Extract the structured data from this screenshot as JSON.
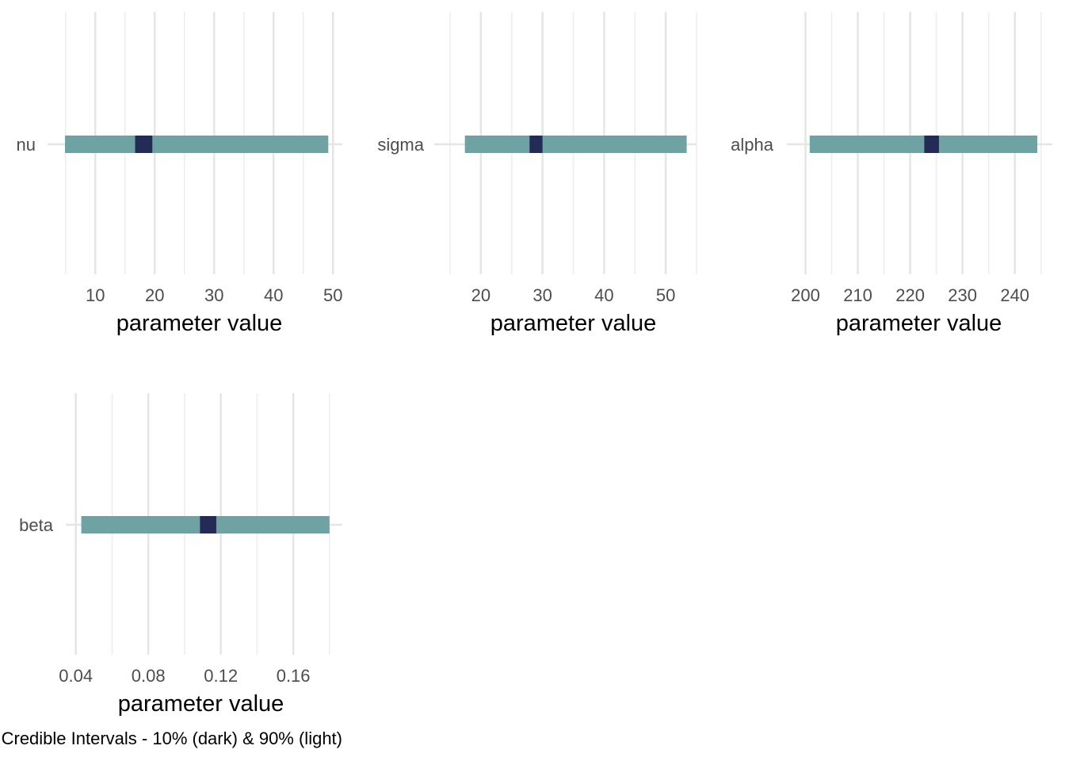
{
  "caption": "Credible Intervals - 10% (dark) & 90% (light)",
  "colors": {
    "outer": "#6fa3a3",
    "inner": "#232b56",
    "grid": "#e5e5e5"
  },
  "chart_data": [
    {
      "type": "interval",
      "parameter": "nu",
      "xlabel": "parameter value",
      "xlim": [
        4.5,
        50.5
      ],
      "ticks": [
        10,
        20,
        30,
        40,
        50
      ],
      "tick_labels": [
        "10",
        "20",
        "30",
        "40",
        "50"
      ],
      "outer": [
        4.9,
        49.2
      ],
      "inner": [
        16.7,
        19.6
      ]
    },
    {
      "type": "interval",
      "parameter": "sigma",
      "xlabel": "parameter value",
      "xlim": [
        15.0,
        55.0
      ],
      "ticks": [
        20,
        30,
        40,
        50
      ],
      "tick_labels": [
        "20",
        "30",
        "40",
        "50"
      ],
      "outer": [
        17.4,
        53.4
      ],
      "inner": [
        27.9,
        30.0
      ]
    },
    {
      "type": "interval",
      "parameter": "alpha",
      "xlabel": "parameter value",
      "xlim": [
        197.5,
        245.8
      ],
      "ticks": [
        200,
        210,
        220,
        230,
        240
      ],
      "tick_labels": [
        "200",
        "210",
        "220",
        "230",
        "240"
      ],
      "outer": [
        200.8,
        244.3
      ],
      "inner": [
        222.7,
        225.5
      ]
    },
    {
      "type": "interval",
      "parameter": "beta",
      "xlabel": "parameter value",
      "xlim": [
        0.0375,
        0.1805
      ],
      "ticks": [
        0.04,
        0.08,
        0.12,
        0.16
      ],
      "tick_labels": [
        "0.04",
        "0.08",
        "0.12",
        "0.16"
      ],
      "outer": [
        0.043,
        0.18
      ],
      "inner": [
        0.1085,
        0.1175
      ]
    }
  ]
}
